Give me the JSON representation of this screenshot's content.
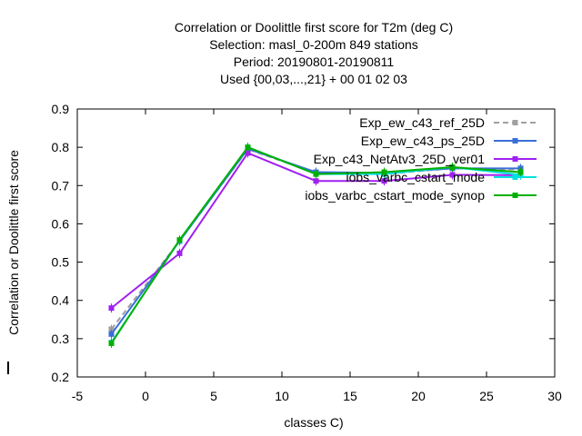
{
  "chart_data": {
    "type": "line",
    "title": [
      "Correlation or Doolittle first score  for T2m (deg C)",
      "Selection: masl_0-200m    849 stations",
      "Period: 20190801-20190811",
      "Used {00,03,...,21} + 00 01 02 03"
    ],
    "xlabel": "classes C)",
    "ylabel": "Correlation or Doolittle first score",
    "xlim": [
      -5,
      30
    ],
    "ylim": [
      0.2,
      0.9
    ],
    "xticks": [
      -5,
      0,
      5,
      10,
      15,
      20,
      25,
      30
    ],
    "yticks": [
      0.2,
      0.3,
      0.4,
      0.5,
      0.6,
      0.7,
      0.8,
      0.9
    ],
    "xtick_labels": [
      "-5",
      "0",
      "5",
      "10",
      "15",
      "20",
      "25",
      "30"
    ],
    "ytick_labels": [
      "0.2",
      "0.3",
      "0.4",
      "0.5",
      "0.6",
      "0.7",
      "0.8",
      "0.9"
    ],
    "grid": false,
    "legend_position": "top-right",
    "x": [
      -2.5,
      2.5,
      7.5,
      12.5,
      17.5,
      22.5,
      27.5
    ],
    "series": [
      {
        "name": "Exp_ew_c43_ref_25D",
        "color": "#a0a0a0",
        "dash": "dashed",
        "values": [
          0.325,
          0.555,
          0.795,
          0.733,
          0.73,
          0.745,
          0.742
        ]
      },
      {
        "name": "Exp_ew_c43_ps_25D",
        "color": "#3a6fd8",
        "dash": "solid",
        "values": [
          0.312,
          0.555,
          0.796,
          0.735,
          0.733,
          0.745,
          0.745
        ]
      },
      {
        "name": "Exp_c43_NetAtv3_25D_ver01",
        "color": "#a020f0",
        "dash": "solid",
        "values": [
          0.38,
          0.523,
          0.785,
          0.712,
          0.712,
          0.728,
          0.727
        ]
      },
      {
        "name": "iobs_varbc_cstart_mode",
        "color": "#00e0e0",
        "dash": "solid",
        "values": [
          0.29,
          0.557,
          0.8,
          0.73,
          0.73,
          0.748,
          0.728
        ]
      },
      {
        "name": "iobs_varbc_cstart_mode_synop",
        "color": "#00b000",
        "dash": "solid",
        "values": [
          0.288,
          0.558,
          0.8,
          0.73,
          0.735,
          0.748,
          0.735
        ]
      }
    ]
  }
}
